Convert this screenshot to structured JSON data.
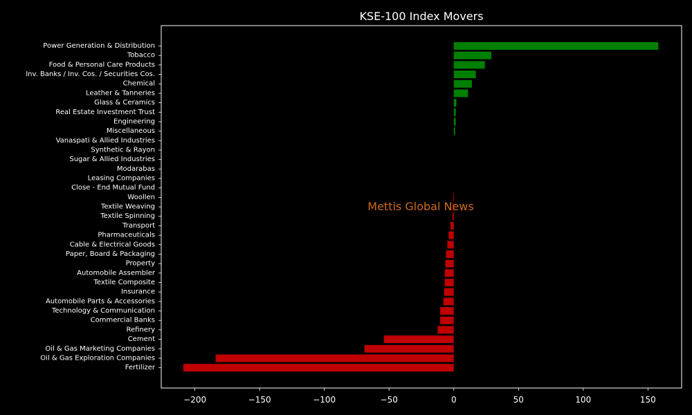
{
  "chart_data": {
    "type": "bar",
    "orientation": "horizontal",
    "title": "KSE-100 Index Movers",
    "xlabel": "",
    "ylabel": "",
    "xlim": [
      -226,
      176
    ],
    "xticks": [
      -200,
      -150,
      -100,
      -50,
      0,
      50,
      100,
      150
    ],
    "xtick_labels": [
      "−200",
      "−150",
      "−100",
      "−50",
      "0",
      "50",
      "100",
      "150"
    ],
    "grid": false,
    "categories": [
      "Power Generation & Distribution",
      "Tobacco",
      "Food & Personal Care Products",
      "Inv. Banks / Inv. Cos. / Securities Cos.",
      "Chemical",
      "Leather & Tanneries",
      "Glass & Ceramics",
      "Real Estate Investment Trust",
      "Engineering",
      "Miscellaneous",
      "Vanaspati & Allied Industries",
      "Synthetic & Rayon",
      "Sugar & Allied Industries",
      "Modarabas",
      "Leasing Companies",
      "Close - End Mutual Fund",
      "Woollen",
      "Textile Weaving",
      "Textile Spinning",
      "Transport",
      "Pharmaceuticals",
      "Cable & Electrical Goods",
      "Paper, Board & Packaging",
      "Property",
      "Automobile Assembler",
      "Textile Composite",
      "Insurance",
      "Automobile Parts & Accessories",
      "Technology & Communication",
      "Commercial Banks",
      "Refinery",
      "Cement",
      "Oil & Gas Marketing Companies",
      "Oil & Gas Exploration Companies",
      "Fertilizer"
    ],
    "values": [
      158,
      29,
      24,
      17,
      14,
      11,
      2,
      1.5,
      1.5,
      1,
      0,
      0,
      0,
      0,
      0,
      0,
      -0.5,
      -0.8,
      -1,
      -2.5,
      -4,
      -5,
      -6,
      -6.5,
      -7,
      -7,
      -7.5,
      -8,
      -10.5,
      -10.5,
      -12.5,
      -54,
      -69,
      -184,
      -209
    ],
    "positive_color": "#008000",
    "negative_color": "#c00000",
    "background_color": "#000000",
    "watermark": {
      "text": "Mettis Global News",
      "color": "#d2691e"
    }
  }
}
